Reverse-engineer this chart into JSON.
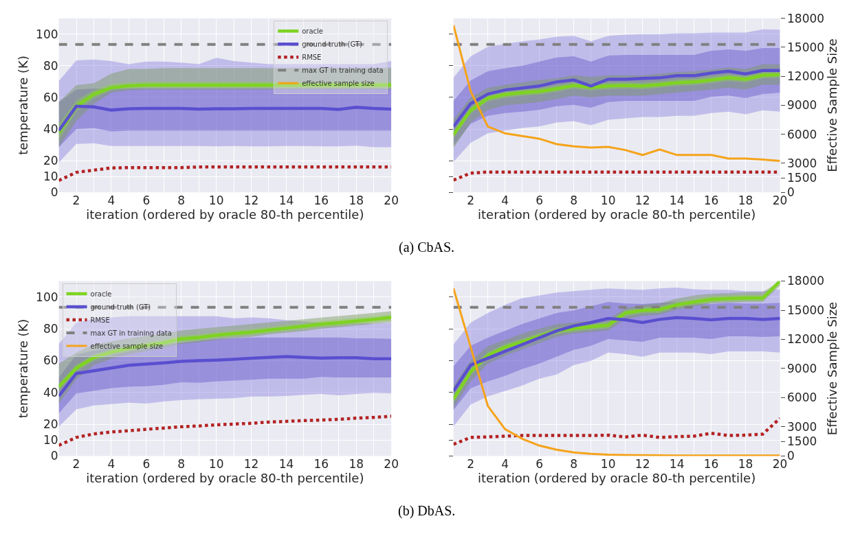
{
  "chart_data": [
    {
      "type": "line",
      "x": [
        1,
        2,
        3,
        4,
        5,
        6,
        7,
        8,
        9,
        10,
        11,
        12,
        13,
        14,
        15,
        16,
        17,
        18,
        19,
        20
      ],
      "xlabel": "iteration (ordered by oracle 80-th percentile)",
      "ylabel": "temperature (K)",
      "xlim": [
        1,
        20
      ],
      "ylim": [
        0,
        110
      ],
      "xticks": [
        {
          "value": 1,
          "label": null
        },
        2,
        {
          "value": 3,
          "label": null
        },
        4,
        {
          "value": 5,
          "label": null
        },
        6,
        {
          "value": 7,
          "label": null
        },
        8,
        {
          "value": 9,
          "label": null
        },
        10,
        {
          "value": 11,
          "label": null
        },
        12,
        {
          "value": 13,
          "label": null
        },
        14,
        {
          "value": 15,
          "label": null
        },
        16,
        {
          "value": 17,
          "label": null
        },
        18,
        {
          "value": 19,
          "label": null
        },
        20
      ],
      "yticks": [
        0,
        10,
        20,
        40,
        60,
        80,
        100
      ],
      "grid": true,
      "legend": "top right",
      "line_style": "solid",
      "annotations": [
        "(a) CbAS."
      ],
      "series": [
        {
          "color": "#8f86e0",
          "values": [
            null,
            null,
            null,
            null,
            null,
            null,
            null,
            null,
            null,
            null,
            null,
            null,
            null,
            null,
            null,
            null,
            null,
            null,
            null,
            null
          ],
          "lower": [
            18.8,
            30.6,
            31,
            29.3,
            29.3,
            29.3,
            29.3,
            29.3,
            29.3,
            29,
            29.3,
            29,
            29,
            29.3,
            29.3,
            29,
            29,
            29.5,
            28.5,
            28.5
          ],
          "upper": [
            70.4,
            83.4,
            84,
            83,
            81,
            82.6,
            82.6,
            82,
            81,
            85,
            83,
            82,
            81,
            81,
            81,
            81,
            81,
            81,
            81,
            83
          ]
        },
        {
          "color": "#6a5acd",
          "values": [
            null,
            null,
            null,
            null,
            null,
            null,
            null,
            null,
            null,
            null,
            null,
            null,
            null,
            null,
            null,
            null,
            null,
            null,
            null,
            null
          ],
          "lower": [
            28.5,
            40,
            40.7,
            38.5,
            39,
            39,
            39,
            39,
            39,
            39,
            39,
            39,
            39,
            39,
            39,
            39,
            39,
            39,
            39,
            39
          ],
          "upper": [
            57,
            65,
            65.5,
            65.7,
            65.7,
            65.7,
            65.7,
            65.7,
            65.7,
            65.7,
            65.7,
            65.7,
            65.7,
            65.7,
            65.7,
            65.7,
            65.7,
            65.7,
            65.7,
            65.7
          ]
        },
        {
          "color": "#7a9a5a",
          "values": [
            null,
            null,
            null,
            null,
            null,
            null,
            null,
            null,
            null,
            null,
            null,
            null,
            null,
            null,
            null,
            null,
            null,
            null,
            null,
            null
          ],
          "lower": [
            28.5,
            45,
            56,
            63,
            64.5,
            65,
            65,
            65,
            65,
            65,
            65,
            65,
            65,
            65,
            65,
            65,
            65,
            65,
            65,
            65
          ],
          "upper": [
            57,
            67.8,
            69,
            75,
            78,
            78,
            78.5,
            78.5,
            78.5,
            78.5,
            78.5,
            78.5,
            78.5,
            78.5,
            78.5,
            78.5,
            78.5,
            78.5,
            78.5,
            78.7
          ]
        },
        {
          "color": "#8fd14f",
          "values": [
            null,
            null,
            null,
            null,
            null,
            null,
            null,
            null,
            null,
            null,
            null,
            null,
            null,
            null,
            null,
            null,
            null,
            null,
            null,
            null
          ],
          "lower": [
            33,
            51,
            59.5,
            64.5,
            65.5,
            66,
            66,
            66,
            66,
            66,
            66,
            66,
            66,
            66,
            66,
            66,
            66,
            66,
            66,
            66
          ],
          "upper": [
            43,
            58,
            64.5,
            68.5,
            69.5,
            70,
            70,
            70,
            70,
            70,
            70,
            70,
            70,
            70,
            70,
            70,
            70,
            70,
            70,
            70
          ]
        },
        {
          "name": "oracle",
          "color": "#7ed321",
          "values": [
            37.7,
            54.4,
            62,
            66.2,
            67.3,
            67.8,
            67.8,
            67.8,
            67.8,
            67.8,
            67.8,
            67.8,
            67.8,
            67.8,
            67.8,
            67.8,
            67.8,
            67.8,
            67.8,
            67.8
          ]
        },
        {
          "name": "ground truth (GT)",
          "color": "#5a4fcf",
          "values": [
            39,
            54.4,
            54,
            52,
            52.8,
            53,
            53,
            53,
            52.6,
            52.8,
            52.8,
            53,
            53,
            53,
            53,
            53,
            52.4,
            53.8,
            53,
            52.6
          ]
        },
        {
          "name": "RMSE",
          "color": "#b22222",
          "line_style": "dotted",
          "values": [
            7.5,
            12.6,
            14,
            15.4,
            15.6,
            15.6,
            15.6,
            15.6,
            16,
            16,
            16,
            16,
            16,
            16,
            16,
            16,
            16,
            16,
            16,
            16
          ]
        },
        {
          "name": "effective sample size",
          "color": "#f5a31a",
          "axis": "y2",
          "values": [
            null,
            null,
            null,
            null,
            null,
            null,
            null,
            null,
            null,
            null,
            null,
            null,
            null,
            null,
            null,
            null,
            null,
            null,
            null,
            null
          ]
        }
      ],
      "ref_lines": [
        {
          "axis": "y",
          "value": 93.5,
          "label": "max GT in training data",
          "color": "#808080",
          "line_style": "dashed"
        }
      ]
    },
    {
      "type": "line",
      "x": [
        1,
        2,
        3,
        4,
        5,
        6,
        7,
        8,
        9,
        10,
        11,
        12,
        13,
        14,
        15,
        16,
        17,
        18,
        19,
        20
      ],
      "xlabel": "iteration (ordered by oracle 80-th percentile)",
      "y2label": "Effective Sample Size",
      "xlim": [
        1,
        20
      ],
      "ylim": [
        0,
        110
      ],
      "y2lim": [
        0,
        18000
      ],
      "tick_labels": "xy2",
      "xticks": [
        {
          "value": 1,
          "label": null
        },
        2,
        {
          "value": 3,
          "label": null
        },
        4,
        {
          "value": 5,
          "label": null
        },
        6,
        {
          "value": 7,
          "label": null
        },
        8,
        {
          "value": 9,
          "label": null
        },
        10,
        {
          "value": 11,
          "label": null
        },
        12,
        {
          "value": 13,
          "label": null
        },
        14,
        {
          "value": 15,
          "label": null
        },
        16,
        {
          "value": 17,
          "label": null
        },
        18,
        {
          "value": 19,
          "label": null
        },
        20
      ],
      "y2ticks": [
        0,
        1500,
        3000,
        6000,
        9000,
        12000,
        15000,
        18000
      ],
      "grid": true,
      "line_style": "solid",
      "series": [
        {
          "color": "#8f86e0",
          "values": [
            null,
            null,
            null,
            null,
            null,
            null,
            null,
            null,
            null,
            null,
            null,
            null,
            null,
            null,
            null,
            null,
            null,
            null,
            null,
            null
          ],
          "lower": [
            19.3,
            31.3,
            37.3,
            39,
            40.7,
            41.6,
            44.1,
            45,
            42.4,
            45.9,
            46.7,
            47.6,
            47.6,
            48.4,
            48.4,
            50.1,
            51,
            49.3,
            51.8,
            51
          ],
          "upper": [
            72.4,
            86,
            92,
            93.8,
            95.5,
            96.7,
            98.4,
            98.9,
            95.5,
            98.9,
            99.7,
            100,
            100,
            100.6,
            100.6,
            101,
            101,
            101,
            103,
            102.8
          ]
        },
        {
          "color": "#6a5acd",
          "values": [
            null,
            null,
            null,
            null,
            null,
            null,
            null,
            null,
            null,
            null,
            null,
            null,
            null,
            null,
            null,
            null,
            null,
            null,
            null,
            null
          ],
          "lower": [
            29.6,
            43.3,
            48.4,
            50.1,
            51,
            52.2,
            54.4,
            55.3,
            53.5,
            57,
            57.8,
            57.8,
            57.8,
            57.8,
            57.8,
            60.4,
            61.2,
            59.5,
            62.1,
            63
          ],
          "upper": [
            57.8,
            70.7,
            76.6,
            78.4,
            80,
            82.6,
            85.2,
            86,
            82.6,
            86.4,
            86.9,
            86.9,
            86.9,
            86.9,
            86.9,
            89.5,
            90.3,
            89.5,
            91.2,
            91.2
          ]
        },
        {
          "color": "#7a9a5a",
          "values": [
            null,
            null,
            null,
            null,
            null,
            null,
            null,
            null,
            null,
            null,
            null,
            null,
            null,
            null,
            null,
            null,
            null,
            null,
            null,
            null
          ],
          "lower": [
            28,
            44,
            52,
            55,
            56,
            57,
            59,
            61,
            60,
            61,
            61,
            61,
            62,
            63,
            64,
            65,
            66,
            65,
            68,
            68
          ],
          "upper": [
            46,
            60,
            66,
            68,
            69.5,
            71,
            72,
            74,
            73,
            74,
            74,
            74,
            75,
            76,
            76.5,
            77.5,
            79,
            78,
            81,
            81
          ]
        },
        {
          "color": "#8fd14f",
          "values": [
            null,
            null,
            null,
            null,
            null,
            null,
            null,
            null,
            null,
            null,
            null,
            null,
            null,
            null,
            null,
            null,
            null,
            null,
            null,
            null
          ],
          "lower": [
            34.4,
            49.8,
            57.5,
            59.8,
            61,
            61.8,
            63.5,
            65.6,
            64.4,
            65.2,
            65.6,
            65.2,
            66.1,
            67.3,
            67.8,
            69,
            70.4,
            69.5,
            72.1,
            72.4
          ],
          "upper": [
            38.4,
            53.8,
            61.5,
            63.8,
            65,
            65.8,
            67.5,
            69.6,
            68.4,
            69.2,
            69.6,
            69.2,
            70.1,
            71.3,
            71.8,
            73,
            74.4,
            73.5,
            76.1,
            76.4
          ]
        },
        {
          "color": "#7ed321",
          "values": [
            36.4,
            51.8,
            59.5,
            61.8,
            63,
            63.8,
            65.5,
            67.6,
            66.4,
            67.2,
            67.6,
            67.2,
            68.1,
            69.3,
            69.8,
            71,
            72.4,
            71.5,
            74.1,
            74.4
          ]
        },
        {
          "color": "#5a4fcf",
          "values": [
            41.6,
            56.1,
            62.1,
            64.7,
            65.9,
            67.2,
            69.8,
            71,
            67.2,
            71.5,
            71.5,
            72,
            72.4,
            73.7,
            73.7,
            75.4,
            76.6,
            74.9,
            77,
            77
          ]
        },
        {
          "color": "#b22222",
          "line_style": "dotted",
          "values": [
            7.7,
            12.1,
            12.8,
            12.8,
            12.8,
            12.8,
            12.8,
            12.8,
            12.8,
            12.8,
            12.8,
            12.8,
            12.8,
            12.8,
            12.8,
            12.8,
            12.8,
            12.8,
            12.8,
            12.8
          ]
        },
        {
          "color": "#f5a31a",
          "axis": "y2",
          "values": [
            17300,
            10440,
            6800,
            6100,
            5820,
            5540,
            4980,
            4760,
            4620,
            4700,
            4370,
            3860,
            4420,
            3860,
            3860,
            3860,
            3500,
            3500,
            3390,
            3250
          ]
        }
      ],
      "ref_lines": [
        {
          "axis": "y",
          "value": 93.5,
          "color": "#808080",
          "line_style": "dashed"
        }
      ]
    },
    {
      "type": "line",
      "x": [
        1,
        2,
        3,
        4,
        5,
        6,
        7,
        8,
        9,
        10,
        11,
        12,
        13,
        14,
        15,
        16,
        17,
        18,
        19,
        20
      ],
      "xlabel": "iteration (ordered by oracle 80-th percentile)",
      "ylabel": "temperature (K)",
      "xlim": [
        1,
        20
      ],
      "ylim": [
        0,
        110
      ],
      "xticks": [
        {
          "value": 1,
          "label": null
        },
        2,
        {
          "value": 3,
          "label": null
        },
        4,
        {
          "value": 5,
          "label": null
        },
        6,
        {
          "value": 7,
          "label": null
        },
        8,
        {
          "value": 9,
          "label": null
        },
        10,
        {
          "value": 11,
          "label": null
        },
        12,
        {
          "value": 13,
          "label": null
        },
        14,
        {
          "value": 15,
          "label": null
        },
        16,
        {
          "value": 17,
          "label": null
        },
        18,
        {
          "value": 19,
          "label": null
        },
        20
      ],
      "yticks": [
        0,
        10,
        20,
        40,
        60,
        80,
        100
      ],
      "grid": true,
      "legend": "top left",
      "line_style": "solid",
      "annotations": [
        "(b) DbAS."
      ],
      "series": [
        {
          "color": "#8f86e0",
          "values": [
            null,
            null,
            null,
            null,
            null,
            null,
            null,
            null,
            null,
            null,
            null,
            null,
            null,
            null,
            null,
            null,
            null,
            null,
            null,
            null
          ],
          "lower": [
            18.4,
            29.3,
            31.8,
            32.7,
            33.5,
            33,
            34.3,
            35.2,
            35.7,
            36,
            36.3,
            37.4,
            37.4,
            37.7,
            38.5,
            39,
            38.2,
            39,
            39.7,
            39.4
          ],
          "upper": [
            70.4,
            83.8,
            86.3,
            87.1,
            87.9,
            87.9,
            87.9,
            87.9,
            87.9,
            87.9,
            86.6,
            87.1,
            86.6,
            85.4,
            84.6,
            83.8,
            83.8,
            83.8,
            83.3,
            83.8
          ]
        },
        {
          "color": "#6a5acd",
          "values": [
            null,
            null,
            null,
            null,
            null,
            null,
            null,
            null,
            null,
            null,
            null,
            null,
            null,
            null,
            null,
            null,
            null,
            null,
            null,
            null
          ],
          "lower": [
            26.8,
            39.4,
            41,
            42.7,
            43.6,
            43.9,
            44.7,
            46.4,
            46,
            46.9,
            47.5,
            48,
            48.6,
            48.6,
            48.6,
            49.7,
            49.4,
            49.4,
            49.4,
            49.4
          ],
          "upper": [
            49.4,
            63.7,
            66.2,
            67.8,
            68.7,
            69.5,
            70.4,
            71.2,
            72.5,
            73.5,
            74,
            74.5,
            74.5,
            74.5,
            74.5,
            74.5,
            74.5,
            74,
            74,
            73.7
          ]
        },
        {
          "color": "#7a9a5a",
          "values": [
            null,
            null,
            null,
            null,
            null,
            null,
            null,
            null,
            null,
            null,
            null,
            null,
            null,
            null,
            null,
            null,
            null,
            null,
            null,
            null
          ],
          "lower": [
            33,
            48,
            57,
            61,
            64,
            66,
            68,
            70.5,
            71.5,
            73,
            74,
            75,
            76.5,
            77.5,
            78.5,
            80,
            81,
            82,
            83,
            84
          ],
          "upper": [
            58,
            65,
            70,
            72,
            74,
            75.5,
            77,
            79,
            80,
            81,
            82,
            83,
            84,
            85,
            86,
            87,
            88,
            89,
            90,
            91
          ]
        },
        {
          "color": "#8fd14f",
          "values": [
            null,
            null,
            null,
            null,
            null,
            null,
            null,
            null,
            null,
            null,
            null,
            null,
            null,
            null,
            null,
            null,
            null,
            null,
            null,
            null
          ],
          "lower": [
            41.5,
            53.3,
            60,
            63.3,
            65.8,
            67.5,
            69.2,
            71.7,
            72.5,
            73.9,
            75,
            75.9,
            77.2,
            78.4,
            79.6,
            80.9,
            81.8,
            82.9,
            83.9,
            85.1
          ],
          "upper": [
            45.5,
            57.3,
            64,
            67.3,
            69.8,
            71.5,
            73.2,
            75.7,
            76.5,
            77.9,
            79,
            79.9,
            81.2,
            82.4,
            83.6,
            84.9,
            85.8,
            86.9,
            87.9,
            89.1
          ]
        },
        {
          "name": "oracle",
          "color": "#7ed321",
          "values": [
            43.5,
            55.3,
            62,
            65.3,
            67.8,
            69.5,
            71.2,
            73.7,
            74.5,
            75.9,
            77,
            77.9,
            79.2,
            80.4,
            81.6,
            82.9,
            83.8,
            84.9,
            85.9,
            87.1
          ]
        },
        {
          "name": "ground truth (GT)",
          "color": "#5a4fcf",
          "values": [
            37.7,
            51.9,
            53.6,
            55.3,
            57,
            57.8,
            58.6,
            59.5,
            60,
            60.3,
            60.8,
            61.5,
            62,
            62.5,
            62,
            61.6,
            61.8,
            61.8,
            61.1,
            61.1
          ]
        },
        {
          "name": "RMSE",
          "color": "#b22222",
          "line_style": "dotted",
          "values": [
            6.7,
            11.7,
            13.9,
            15.1,
            15.9,
            16.8,
            17.6,
            18.4,
            18.9,
            19.6,
            20.1,
            20.6,
            21.3,
            21.8,
            22.3,
            22.6,
            23.1,
            23.8,
            24.3,
            25
          ]
        },
        {
          "name": "effective sample size",
          "color": "#f5a31a",
          "axis": "y2",
          "values": [
            null,
            null,
            null,
            null,
            null,
            null,
            null,
            null,
            null,
            null,
            null,
            null,
            null,
            null,
            null,
            null,
            null,
            null,
            null,
            null
          ]
        }
      ],
      "ref_lines": [
        {
          "axis": "y",
          "value": 93.5,
          "label": "max GT in training data",
          "color": "#808080",
          "line_style": "dashed"
        }
      ]
    },
    {
      "type": "line",
      "x": [
        1,
        2,
        3,
        4,
        5,
        6,
        7,
        8,
        9,
        10,
        11,
        12,
        13,
        14,
        15,
        16,
        17,
        18,
        19,
        20
      ],
      "xlabel": "iteration (ordered by oracle 80-th percentile)",
      "y2label": "Effective Sample Size",
      "xlim": [
        1,
        20
      ],
      "ylim": [
        0,
        110
      ],
      "y2lim": [
        0,
        18000
      ],
      "tick_labels": "xy2",
      "xticks": [
        {
          "value": 1,
          "label": null
        },
        2,
        {
          "value": 3,
          "label": null
        },
        4,
        {
          "value": 5,
          "label": null
        },
        6,
        {
          "value": 7,
          "label": null
        },
        8,
        {
          "value": 9,
          "label": null
        },
        10,
        {
          "value": 11,
          "label": null
        },
        12,
        {
          "value": 13,
          "label": null
        },
        14,
        {
          "value": 15,
          "label": null
        },
        16,
        {
          "value": 17,
          "label": null
        },
        18,
        {
          "value": 19,
          "label": null
        },
        20
      ],
      "y2ticks": [
        0,
        1500,
        3000,
        6000,
        9000,
        12000,
        15000,
        18000
      ],
      "grid": true,
      "line_style": "solid",
      "series": [
        {
          "color": "#8f86e0",
          "values": [
            null,
            null,
            null,
            null,
            null,
            null,
            null,
            null,
            null,
            null,
            null,
            null,
            null,
            null,
            null,
            null,
            null,
            null,
            null,
            null
          ],
          "lower": [
            18.6,
            32.3,
            37.5,
            40.9,
            44.3,
            48.6,
            51.2,
            57.2,
            59.8,
            65,
            64.1,
            62.4,
            65,
            65,
            65,
            64.1,
            65.8,
            65.8,
            65.8,
            65
          ],
          "upper": [
            70.1,
            83.9,
            89.9,
            95,
            99.3,
            101,
            102.8,
            103.6,
            104.5,
            105.4,
            104.8,
            104.5,
            105.4,
            105.9,
            104.8,
            104.5,
            104.5,
            103.6,
            103.6,
            104.8
          ]
        },
        {
          "color": "#6a5acd",
          "values": [
            null,
            null,
            null,
            null,
            null,
            null,
            null,
            null,
            null,
            null,
            null,
            null,
            null,
            null,
            null,
            null,
            null,
            null,
            null,
            null
          ],
          "lower": [
            28.9,
            42.6,
            46.9,
            50.4,
            54.7,
            58.1,
            62.4,
            66.7,
            69.3,
            73.6,
            72.7,
            71.8,
            74.4,
            74.4,
            74.4,
            73.6,
            75.3,
            75.3,
            74.9,
            75.3
          ],
          "upper": [
            56.4,
            69.3,
            74.4,
            78.7,
            83,
            86.5,
            89.9,
            91.6,
            94.2,
            96.8,
            95.9,
            95.6,
            96.3,
            96.8,
            96.3,
            95.6,
            96.3,
            95.9,
            95.9,
            96.3
          ]
        },
        {
          "color": "#7a9a5a",
          "values": [
            null,
            null,
            null,
            null,
            null,
            null,
            null,
            null,
            null,
            null,
            null,
            null,
            null,
            null,
            null,
            null,
            null,
            null,
            null,
            null
          ],
          "lower": [
            30,
            47,
            58,
            63,
            67,
            71,
            75,
            77,
            78,
            79,
            86,
            88,
            89,
            92,
            94,
            96,
            96.5,
            97,
            97,
            107
          ],
          "upper": [
            44,
            60,
            69,
            73,
            77,
            80,
            83,
            84,
            85,
            86,
            93,
            95,
            96,
            99,
            101,
            102,
            102.5,
            103,
            103,
            110
          ]
        },
        {
          "color": "#8fd14f",
          "values": [
            null,
            null,
            null,
            null,
            null,
            null,
            null,
            null,
            null,
            null,
            null,
            null,
            null,
            null,
            null,
            null,
            null,
            null,
            null,
            null
          ],
          "lower": [
            33.8,
            50.9,
            61.3,
            66.4,
            69.8,
            73.3,
            76.7,
            78.1,
            79.3,
            80.2,
            87.9,
            89.6,
            90.1,
            93,
            94.8,
            96.5,
            97,
            97.3,
            97.3,
            108
          ],
          "upper": [
            37.8,
            54.9,
            65.3,
            70.4,
            73.8,
            77.3,
            80.7,
            82.1,
            83.3,
            84.2,
            91.9,
            93.6,
            94.1,
            97,
            98.8,
            100.5,
            101,
            101.3,
            101.3,
            110
          ]
        },
        {
          "color": "#7ed321",
          "values": [
            35.8,
            52.9,
            63.3,
            68.4,
            71.8,
            75.3,
            78.7,
            80.1,
            81.3,
            82.2,
            89.9,
            91.6,
            92.1,
            95,
            96.8,
            98.5,
            99,
            99.3,
            99.3,
            110
          ]
        },
        {
          "color": "#5a4fcf",
          "values": [
            40.9,
            57.2,
            61.5,
            65.8,
            70.1,
            74.4,
            78.7,
            81.8,
            83.9,
            86.5,
            85.6,
            83.9,
            85.9,
            87,
            86.5,
            85.6,
            86.5,
            86.5,
            85.9,
            86.5
          ]
        },
        {
          "color": "#b22222",
          "line_style": "dotted",
          "values": [
            7.4,
            11.7,
            12,
            12.5,
            12.9,
            12.9,
            12.9,
            12.9,
            12.9,
            13.1,
            12,
            13.1,
            11.7,
            12.2,
            12.5,
            14.3,
            12.9,
            13.1,
            13.8,
            23.7
          ]
        },
        {
          "color": "#f5a31a",
          "axis": "y2",
          "values": [
            17250,
            11200,
            5150,
            2760,
            1770,
            1070,
            650,
            370,
            225,
            140,
            100,
            80,
            60,
            50,
            50,
            50,
            50,
            50,
            50,
            50
          ]
        }
      ],
      "ref_lines": [
        {
          "axis": "y",
          "value": 93.5,
          "color": "#808080",
          "line_style": "dashed"
        }
      ]
    }
  ]
}
